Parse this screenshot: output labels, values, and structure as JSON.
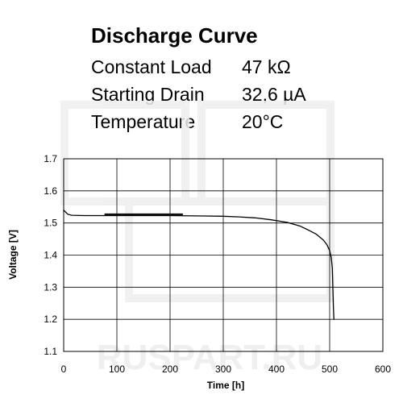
{
  "header": {
    "title": "Discharge Curve",
    "params": [
      {
        "label": "Constant Load",
        "value": "47 kΩ"
      },
      {
        "label": "Starting Drain",
        "value": "32,6 µA"
      },
      {
        "label": "Temperature",
        "value": "20°C"
      }
    ]
  },
  "watermark": {
    "text": "RUSPART.RU"
  },
  "chart_data": {
    "type": "line",
    "xlabel": "Time [h]",
    "ylabel": "Voltage [V]",
    "xlim": [
      0,
      600
    ],
    "ylim": [
      1.1,
      1.7
    ],
    "xticks": [
      0,
      100,
      200,
      300,
      400,
      500,
      600
    ],
    "yticks": [
      1.1,
      1.2,
      1.3,
      1.4,
      1.5,
      1.6,
      1.7
    ],
    "ytick_labels": [
      "1.1",
      "1.2",
      "1.3",
      "1.4",
      "1.5",
      "1.6",
      "1.7"
    ],
    "grid": true,
    "series": [
      {
        "color": "#000000",
        "points": [
          [
            0,
            1.54
          ],
          [
            3,
            1.535
          ],
          [
            8,
            1.527
          ],
          [
            15,
            1.524
          ],
          [
            40,
            1.523
          ],
          [
            100,
            1.523
          ],
          [
            200,
            1.523
          ],
          [
            250,
            1.522
          ],
          [
            300,
            1.521
          ],
          [
            330,
            1.519
          ],
          [
            360,
            1.516
          ],
          [
            390,
            1.51
          ],
          [
            420,
            1.502
          ],
          [
            445,
            1.49
          ],
          [
            460,
            1.478
          ],
          [
            475,
            1.465
          ],
          [
            488,
            1.447
          ],
          [
            495,
            1.432
          ],
          [
            500,
            1.414
          ],
          [
            503,
            1.392
          ],
          [
            505,
            1.36
          ],
          [
            506,
            1.3
          ],
          [
            507,
            1.24
          ],
          [
            508,
            1.2
          ]
        ]
      },
      {
        "color": "#000000",
        "width": 2,
        "points": [
          [
            78,
            1.527
          ],
          [
            223,
            1.527
          ]
        ]
      }
    ]
  }
}
